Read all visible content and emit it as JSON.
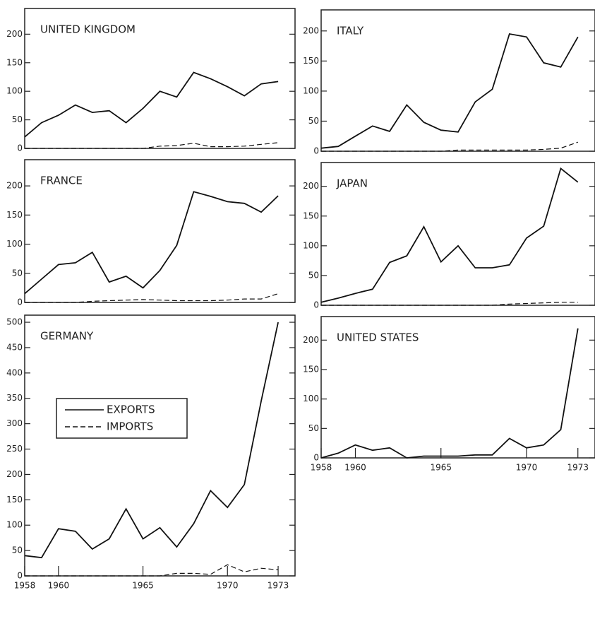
{
  "chart_data": [
    {
      "type": "line",
      "title": "UNITED KINGDOM",
      "x": [
        1958,
        1959,
        1960,
        1961,
        1962,
        1963,
        1964,
        1965,
        1966,
        1967,
        1968,
        1969,
        1970,
        1971,
        1972,
        1973
      ],
      "series": [
        {
          "name": "EXPORTS",
          "color": "#111111",
          "values": [
            20,
            45,
            58,
            76,
            63,
            66,
            45,
            70,
            100,
            90,
            133,
            122,
            108,
            92,
            113,
            117
          ]
        },
        {
          "name": "IMPORTS",
          "color": "#111111",
          "values": [
            0,
            0,
            0,
            0,
            0,
            0,
            0,
            0,
            4,
            5,
            9,
            3,
            3,
            4,
            7,
            10
          ]
        }
      ],
      "xlim": [
        1958,
        1974
      ],
      "ylim": [
        0,
        245
      ],
      "yticks": [
        0,
        50,
        100,
        150,
        200
      ]
    },
    {
      "type": "line",
      "title": "ITALY",
      "x": [
        1958,
        1959,
        1960,
        1961,
        1962,
        1963,
        1964,
        1965,
        1966,
        1967,
        1968,
        1969,
        1970,
        1971,
        1972,
        1973
      ],
      "series": [
        {
          "name": "EXPORTS",
          "color": "#111111",
          "values": [
            5,
            8,
            25,
            42,
            33,
            77,
            48,
            35,
            32,
            82,
            103,
            195,
            190,
            147,
            140,
            190
          ]
        },
        {
          "name": "IMPORTS",
          "color": "#111111",
          "values": [
            0,
            0,
            0,
            0,
            0,
            0,
            0,
            0,
            2,
            2,
            2,
            2,
            2,
            3,
            5,
            15
          ]
        }
      ],
      "xlim": [
        1958,
        1974
      ],
      "ylim": [
        0,
        235
      ],
      "yticks": [
        0,
        50,
        100,
        150,
        200
      ]
    },
    {
      "type": "line",
      "title": "FRANCE",
      "x": [
        1958,
        1959,
        1960,
        1961,
        1962,
        1963,
        1964,
        1965,
        1966,
        1967,
        1968,
        1969,
        1970,
        1971,
        1972,
        1973
      ],
      "series": [
        {
          "name": "EXPORTS",
          "color": "#111111",
          "values": [
            15,
            40,
            65,
            68,
            86,
            35,
            45,
            25,
            55,
            98,
            190,
            182,
            173,
            170,
            155,
            183
          ]
        },
        {
          "name": "IMPORTS",
          "color": "#111111",
          "values": [
            0,
            0,
            0,
            0,
            2,
            3,
            4,
            5,
            4,
            3,
            3,
            3,
            4,
            6,
            6,
            15
          ]
        }
      ],
      "xlim": [
        1958,
        1974
      ],
      "ylim": [
        0,
        245
      ],
      "yticks": [
        0,
        50,
        100,
        150,
        200
      ]
    },
    {
      "type": "line",
      "title": "JAPAN",
      "x": [
        1958,
        1959,
        1960,
        1961,
        1962,
        1963,
        1964,
        1965,
        1966,
        1967,
        1968,
        1969,
        1970,
        1971,
        1972,
        1973
      ],
      "series": [
        {
          "name": "EXPORTS",
          "color": "#111111",
          "values": [
            5,
            12,
            20,
            27,
            72,
            83,
            132,
            73,
            100,
            63,
            63,
            68,
            113,
            133,
            230,
            207
          ]
        },
        {
          "name": "IMPORTS",
          "color": "#111111",
          "values": [
            0,
            0,
            0,
            0,
            0,
            0,
            0,
            0,
            0,
            0,
            0,
            2,
            3,
            4,
            5,
            5
          ]
        }
      ],
      "xlim": [
        1958,
        1974
      ],
      "ylim": [
        0,
        240
      ],
      "yticks": [
        0,
        50,
        100,
        150,
        200
      ]
    },
    {
      "type": "line",
      "title": "GERMANY",
      "legend": true,
      "x": [
        1958,
        1959,
        1960,
        1961,
        1962,
        1963,
        1964,
        1965,
        1966,
        1967,
        1968,
        1969,
        1970,
        1971,
        1972,
        1973
      ],
      "series": [
        {
          "name": "EXPORTS",
          "color": "#111111",
          "values": [
            40,
            36,
            93,
            88,
            53,
            73,
            132,
            73,
            95,
            57,
            103,
            168,
            135,
            180,
            345,
            500
          ]
        },
        {
          "name": "IMPORTS",
          "color": "#111111",
          "values": [
            0,
            0,
            0,
            0,
            0,
            0,
            0,
            0,
            0,
            5,
            5,
            3,
            22,
            8,
            15,
            12
          ]
        }
      ],
      "xlim": [
        1958,
        1974
      ],
      "ylim": [
        0,
        514
      ],
      "yticks": [
        0,
        50,
        100,
        150,
        200,
        250,
        300,
        350,
        400,
        450,
        500
      ],
      "xticks": [
        1958,
        1960,
        1965,
        1970,
        1973
      ]
    },
    {
      "type": "line",
      "title": "UNITED STATES",
      "x": [
        1958,
        1959,
        1960,
        1961,
        1962,
        1963,
        1964,
        1965,
        1966,
        1967,
        1968,
        1969,
        1970,
        1971,
        1972,
        1973
      ],
      "series": [
        {
          "name": "EXPORTS",
          "color": "#111111",
          "values": [
            0,
            8,
            22,
            13,
            17,
            0,
            3,
            3,
            3,
            5,
            5,
            33,
            17,
            22,
            48,
            220
          ]
        }
      ],
      "xlim": [
        1958,
        1974
      ],
      "ylim": [
        0,
        240
      ],
      "yticks": [
        0,
        50,
        100,
        150,
        200
      ],
      "xticks": [
        1958,
        1960,
        1965,
        1970,
        1973
      ]
    }
  ]
}
